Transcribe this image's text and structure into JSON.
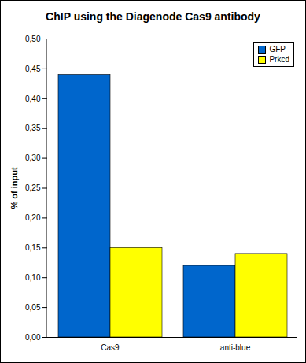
{
  "chart_data": {
    "type": "bar",
    "title": "ChIP using the Diagenode Cas9 antibody",
    "y_label": "% of input",
    "categories": [
      "Cas9",
      "anti-blue"
    ],
    "series": [
      {
        "name": "GFP",
        "color": "#0066CC",
        "values": [
          0.44,
          0.12
        ]
      },
      {
        "name": "Prkcd",
        "color": "#FFFF00",
        "values": [
          0.15,
          0.14
        ]
      }
    ],
    "ylim": [
      0,
      0.5
    ],
    "yticks": [
      {
        "value": 0,
        "label": "0,00"
      },
      {
        "value": 0.05,
        "label": "0,05"
      },
      {
        "value": 0.1,
        "label": "0,10"
      },
      {
        "value": 0.15,
        "label": "0,15"
      },
      {
        "value": 0.2,
        "label": "0,20"
      },
      {
        "value": 0.25,
        "label": "0,25"
      },
      {
        "value": 0.3,
        "label": "0,30"
      },
      {
        "value": 0.35,
        "label": "0,35"
      },
      {
        "value": 0.4,
        "label": "0,40"
      },
      {
        "value": 0.45,
        "label": "0,45"
      },
      {
        "value": 0.5,
        "label": "0,50"
      }
    ],
    "grid": false,
    "legend": "top-right"
  }
}
